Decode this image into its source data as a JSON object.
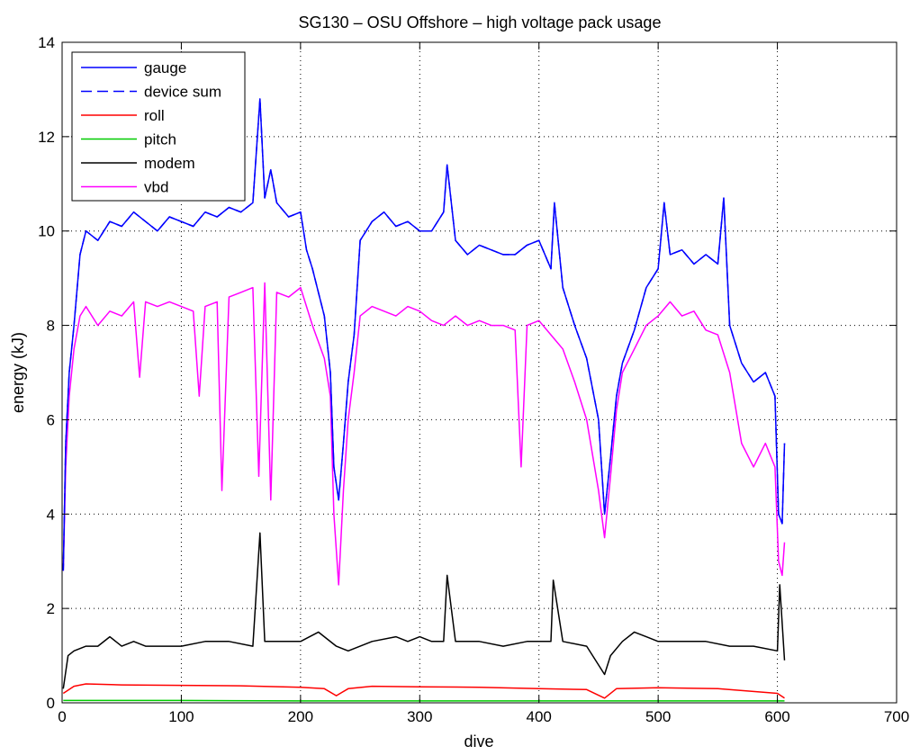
{
  "chart_data": {
    "type": "line",
    "title": "SG130 – OSU Offshore – high voltage pack usage",
    "xlabel": "dive",
    "ylabel": "energy (kJ)",
    "xlim": [
      0,
      700
    ],
    "ylim": [
      0,
      14
    ],
    "xticks": [
      0,
      100,
      200,
      300,
      400,
      500,
      600,
      700
    ],
    "yticks": [
      0,
      2,
      4,
      6,
      8,
      10,
      12,
      14
    ],
    "grid": true,
    "legend_position": "top-left",
    "series": [
      {
        "name": "gauge",
        "color": "#0000ff",
        "dash": "solid",
        "x": [
          1,
          3,
          6,
          10,
          15,
          20,
          30,
          40,
          50,
          60,
          70,
          80,
          90,
          100,
          110,
          120,
          130,
          140,
          150,
          160,
          166,
          170,
          175,
          180,
          190,
          200,
          205,
          210,
          215,
          220,
          225,
          228,
          232,
          236,
          240,
          245,
          250,
          260,
          270,
          280,
          290,
          300,
          310,
          320,
          323,
          330,
          340,
          350,
          360,
          370,
          380,
          390,
          400,
          410,
          413,
          420,
          430,
          440,
          450,
          455,
          460,
          465,
          470,
          480,
          490,
          500,
          505,
          510,
          520,
          530,
          540,
          550,
          555,
          560,
          570,
          580,
          590,
          598,
          601,
          604,
          606
        ],
        "y": [
          2.8,
          5.5,
          7.0,
          8.0,
          9.5,
          10.0,
          9.8,
          10.2,
          10.1,
          10.4,
          10.2,
          10.0,
          10.3,
          10.2,
          10.1,
          10.4,
          10.3,
          10.5,
          10.4,
          10.6,
          12.8,
          10.7,
          11.3,
          10.6,
          10.3,
          10.4,
          9.6,
          9.2,
          8.7,
          8.2,
          7.0,
          5.0,
          4.3,
          5.5,
          6.8,
          7.8,
          9.8,
          10.2,
          10.4,
          10.1,
          10.2,
          10.0,
          10.0,
          10.4,
          11.4,
          9.8,
          9.5,
          9.7,
          9.6,
          9.5,
          9.5,
          9.7,
          9.8,
          9.2,
          10.6,
          8.8,
          8.0,
          7.3,
          6.0,
          4.0,
          5.2,
          6.5,
          7.2,
          7.9,
          8.8,
          9.2,
          10.6,
          9.5,
          9.6,
          9.3,
          9.5,
          9.3,
          10.7,
          8.0,
          7.2,
          6.8,
          7.0,
          6.5,
          4.0,
          3.8,
          5.5
        ]
      },
      {
        "name": "device sum",
        "color": "#0000ff",
        "dash": "dashed",
        "x": [
          1,
          3,
          6,
          10,
          15,
          20,
          30,
          40,
          50,
          60,
          70,
          80,
          90,
          100,
          110,
          120,
          130,
          140,
          150,
          160,
          166,
          170,
          175,
          180,
          190,
          200,
          205,
          210,
          215,
          220,
          225,
          228,
          232,
          236,
          240,
          245,
          250,
          260,
          270,
          280,
          290,
          300,
          310,
          320,
          323,
          330,
          340,
          350,
          360,
          370,
          380,
          390,
          400,
          410,
          413,
          420,
          430,
          440,
          450,
          455,
          460,
          465,
          470,
          480,
          490,
          500,
          505,
          510,
          520,
          530,
          540,
          550,
          555,
          560,
          570,
          580,
          590,
          598,
          601,
          604,
          606
        ],
        "y": [
          2.8,
          5.5,
          7.0,
          8.0,
          9.5,
          10.0,
          9.8,
          10.2,
          10.1,
          10.4,
          10.2,
          10.0,
          10.3,
          10.2,
          10.1,
          10.4,
          10.3,
          10.5,
          10.4,
          10.6,
          12.8,
          10.7,
          11.3,
          10.6,
          10.3,
          10.4,
          9.6,
          9.2,
          8.7,
          8.2,
          7.0,
          5.0,
          4.3,
          5.5,
          6.8,
          7.8,
          9.8,
          10.2,
          10.4,
          10.1,
          10.2,
          10.0,
          10.0,
          10.4,
          11.4,
          9.8,
          9.5,
          9.7,
          9.6,
          9.5,
          9.5,
          9.7,
          9.8,
          9.2,
          10.6,
          8.8,
          8.0,
          7.3,
          6.0,
          4.0,
          5.2,
          6.5,
          7.2,
          7.9,
          8.8,
          9.2,
          10.6,
          9.5,
          9.6,
          9.3,
          9.5,
          9.3,
          10.7,
          8.0,
          7.2,
          6.8,
          7.0,
          6.5,
          4.0,
          3.8,
          5.5
        ]
      },
      {
        "name": "roll",
        "color": "#ff0000",
        "dash": "solid",
        "x": [
          1,
          10,
          20,
          50,
          100,
          150,
          200,
          220,
          230,
          240,
          260,
          300,
          350,
          400,
          440,
          455,
          465,
          500,
          550,
          600,
          606
        ],
        "y": [
          0.2,
          0.35,
          0.4,
          0.38,
          0.37,
          0.36,
          0.33,
          0.3,
          0.15,
          0.3,
          0.35,
          0.34,
          0.33,
          0.3,
          0.28,
          0.1,
          0.3,
          0.32,
          0.3,
          0.2,
          0.1
        ]
      },
      {
        "name": "pitch",
        "color": "#00cc00",
        "dash": "solid",
        "x": [
          1,
          100,
          200,
          300,
          400,
          500,
          606
        ],
        "y": [
          0.05,
          0.05,
          0.04,
          0.04,
          0.04,
          0.04,
          0.04
        ]
      },
      {
        "name": "modem",
        "color": "#000000",
        "dash": "solid",
        "x": [
          1,
          5,
          10,
          20,
          30,
          40,
          50,
          60,
          70,
          80,
          100,
          120,
          140,
          160,
          166,
          170,
          180,
          200,
          215,
          230,
          240,
          260,
          280,
          290,
          300,
          310,
          320,
          323,
          330,
          350,
          370,
          390,
          400,
          410,
          412,
          420,
          440,
          455,
          460,
          470,
          480,
          490,
          500,
          520,
          540,
          560,
          580,
          600,
          602,
          606
        ],
        "y": [
          0.3,
          1.0,
          1.1,
          1.2,
          1.2,
          1.4,
          1.2,
          1.3,
          1.2,
          1.2,
          1.2,
          1.3,
          1.3,
          1.2,
          3.6,
          1.3,
          1.3,
          1.3,
          1.5,
          1.2,
          1.1,
          1.3,
          1.4,
          1.3,
          1.4,
          1.3,
          1.3,
          2.7,
          1.3,
          1.3,
          1.2,
          1.3,
          1.3,
          1.3,
          2.6,
          1.3,
          1.2,
          0.6,
          1.0,
          1.3,
          1.5,
          1.4,
          1.3,
          1.3,
          1.3,
          1.2,
          1.2,
          1.1,
          2.5,
          0.9
        ]
      },
      {
        "name": "vbd",
        "color": "#ff00ff",
        "dash": "solid",
        "x": [
          1,
          3,
          6,
          10,
          15,
          20,
          30,
          40,
          50,
          60,
          65,
          70,
          80,
          90,
          100,
          110,
          115,
          120,
          130,
          134,
          140,
          150,
          160,
          165,
          170,
          175,
          180,
          190,
          200,
          210,
          220,
          225,
          228,
          232,
          236,
          240,
          245,
          250,
          260,
          270,
          280,
          290,
          300,
          310,
          320,
          330,
          340,
          350,
          360,
          370,
          380,
          385,
          390,
          400,
          410,
          420,
          430,
          440,
          450,
          455,
          460,
          465,
          470,
          480,
          490,
          500,
          510,
          520,
          530,
          540,
          550,
          560,
          570,
          580,
          590,
          598,
          601,
          604,
          606
        ],
        "y": [
          2.8,
          5.0,
          6.5,
          7.5,
          8.2,
          8.4,
          8.0,
          8.3,
          8.2,
          8.5,
          6.9,
          8.5,
          8.4,
          8.5,
          8.4,
          8.3,
          6.5,
          8.4,
          8.5,
          4.5,
          8.6,
          8.7,
          8.8,
          4.8,
          8.9,
          4.3,
          8.7,
          8.6,
          8.8,
          8.0,
          7.3,
          6.5,
          4.0,
          2.5,
          4.5,
          6.0,
          7.0,
          8.2,
          8.4,
          8.3,
          8.2,
          8.4,
          8.3,
          8.1,
          8.0,
          8.2,
          8.0,
          8.1,
          8.0,
          8.0,
          7.9,
          5.0,
          8.0,
          8.1,
          7.8,
          7.5,
          6.8,
          6.0,
          4.5,
          3.5,
          4.8,
          6.2,
          7.0,
          7.5,
          8.0,
          8.2,
          8.5,
          8.2,
          8.3,
          7.9,
          7.8,
          7.0,
          5.5,
          5.0,
          5.5,
          5.0,
          3.0,
          2.7,
          3.4
        ]
      }
    ]
  }
}
